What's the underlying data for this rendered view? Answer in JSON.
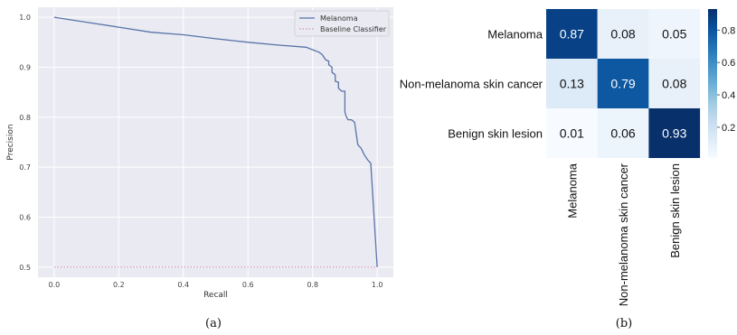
{
  "chart_data": [
    {
      "type": "line",
      "caption": "(a)",
      "xlabel": "Recall",
      "ylabel": "Precision",
      "xlim": [
        -0.05,
        1.05
      ],
      "ylim": [
        0.48,
        1.02
      ],
      "xticks": [
        "0.0",
        "0.2",
        "0.4",
        "0.6",
        "0.8",
        "1.0"
      ],
      "yticks": [
        "0.5",
        "0.6",
        "0.7",
        "0.8",
        "0.9",
        "1.0"
      ],
      "grid": true,
      "legend_position": "top-right",
      "colors": {
        "background": "#eaeaf2",
        "grid": "#ffffff",
        "melanoma": "#5874a8",
        "baseline": "#c77cba"
      },
      "series": [
        {
          "name": "Melanoma",
          "style": "solid",
          "x": [
            0.0,
            0.1,
            0.2,
            0.3,
            0.4,
            0.5,
            0.6,
            0.7,
            0.74,
            0.78,
            0.8,
            0.82,
            0.83,
            0.84,
            0.85,
            0.85,
            0.86,
            0.86,
            0.87,
            0.87,
            0.88,
            0.88,
            0.89,
            0.9,
            0.9,
            0.905,
            0.91,
            0.92,
            0.93,
            0.94,
            0.95,
            0.96,
            0.97,
            0.98,
            1.0
          ],
          "y": [
            1.0,
            0.99,
            0.98,
            0.97,
            0.965,
            0.957,
            0.95,
            0.944,
            0.942,
            0.94,
            0.935,
            0.93,
            0.925,
            0.915,
            0.912,
            0.905,
            0.9,
            0.89,
            0.885,
            0.872,
            0.87,
            0.858,
            0.852,
            0.852,
            0.81,
            0.8,
            0.795,
            0.795,
            0.79,
            0.745,
            0.738,
            0.725,
            0.715,
            0.708,
            0.5
          ]
        },
        {
          "name": "Baseline Classifier",
          "style": "dotted",
          "x": [
            0.0,
            1.0
          ],
          "y": [
            0.5,
            0.5
          ]
        }
      ]
    },
    {
      "type": "heatmap",
      "caption": "(b)",
      "rows": [
        "Melanoma",
        "Non-melanoma skin cancer",
        "Benign skin lesion"
      ],
      "columns": [
        "Melanoma",
        "Non-melanoma skin cancer",
        "Benign skin lesion"
      ],
      "values": [
        [
          0.87,
          0.08,
          0.05
        ],
        [
          0.13,
          0.79,
          0.08
        ],
        [
          0.01,
          0.06,
          0.93
        ]
      ],
      "colorbar": {
        "ticks": [
          "0.2",
          "0.4",
          "0.6",
          "0.8"
        ],
        "range": [
          0.01,
          0.93
        ]
      },
      "colormap": "Blues"
    }
  ]
}
